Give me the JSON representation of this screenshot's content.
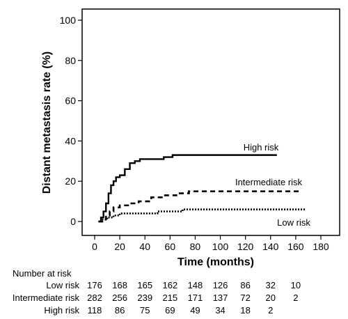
{
  "chart_data": {
    "type": "line",
    "ylabel": "Distant metastasis rate (%)",
    "xlabel": "Time (months)",
    "xlim": [
      0,
      180
    ],
    "ylim": [
      0,
      100
    ],
    "xticks": [
      "0",
      "20",
      "40",
      "60",
      "80",
      "100",
      "120",
      "140",
      "160",
      "180"
    ],
    "yticks": [
      "0",
      "20",
      "40",
      "60",
      "80",
      "100"
    ],
    "grid": false,
    "series": [
      {
        "name": "High risk",
        "style": "solid",
        "x": [
          3,
          5,
          7,
          9,
          11,
          13,
          15,
          17,
          20,
          24,
          28,
          32,
          36,
          45,
          55,
          62,
          70,
          90,
          110,
          130,
          145
        ],
        "y": [
          0,
          2,
          5,
          9,
          14,
          18,
          20,
          22,
          23,
          26,
          29,
          30,
          31,
          31,
          32,
          33,
          33,
          33,
          33,
          33,
          33
        ]
      },
      {
        "name": "Intermediate risk",
        "style": "dashed",
        "x": [
          3,
          6,
          9,
          12,
          15,
          20,
          28,
          35,
          45,
          55,
          65,
          75,
          85,
          100,
          120,
          140,
          165
        ],
        "y": [
          0,
          1,
          3,
          5,
          7,
          8,
          9,
          10,
          12,
          13,
          14,
          15,
          15,
          15,
          15,
          15,
          15
        ]
      },
      {
        "name": "Low risk",
        "style": "dotted",
        "x": [
          3,
          6,
          10,
          15,
          20,
          30,
          40,
          50,
          60,
          70,
          90,
          120,
          145,
          168
        ],
        "y": [
          0,
          1,
          2,
          3,
          4,
          4,
          4,
          5,
          5,
          6,
          6,
          6,
          6,
          6
        ]
      }
    ]
  },
  "risk_table": {
    "title": "Number at risk",
    "times": [
      0,
      20,
      40,
      60,
      80,
      100,
      120,
      140,
      160
    ],
    "rows": [
      {
        "label": "Low risk",
        "values": [
          "176",
          "168",
          "165",
          "162",
          "148",
          "126",
          "86",
          "32",
          "10"
        ]
      },
      {
        "label": "Intermediate risk",
        "values": [
          "282",
          "256",
          "239",
          "215",
          "171",
          "137",
          "72",
          "20",
          "2"
        ]
      },
      {
        "label": "High risk",
        "values": [
          "118",
          "86",
          "75",
          "69",
          "49",
          "34",
          "18",
          "2"
        ]
      }
    ]
  }
}
